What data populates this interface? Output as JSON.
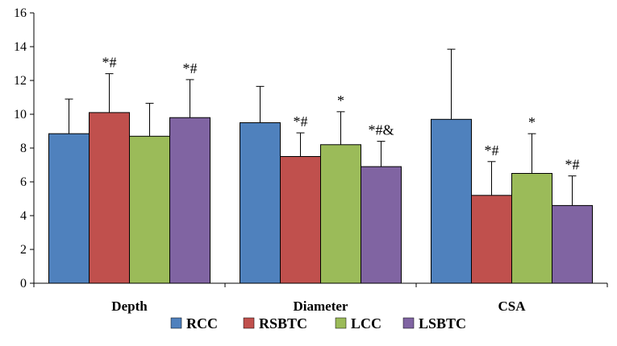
{
  "chart_data": {
    "type": "bar",
    "title": "",
    "xlabel": "",
    "ylabel": "",
    "ylim": [
      0,
      16
    ],
    "yticks": [
      0,
      2,
      4,
      6,
      8,
      10,
      12,
      14,
      16
    ],
    "grid": false,
    "legend_position": "bottom",
    "categories": [
      "Depth",
      "Diameter",
      "CSA"
    ],
    "series": [
      {
        "name": "RCC",
        "color": "#4F81BD",
        "values": [
          8.85,
          9.5,
          9.7
        ],
        "error": [
          2.05,
          2.15,
          4.15
        ],
        "annotations": [
          "",
          "",
          ""
        ]
      },
      {
        "name": "RSBTC",
        "color": "#C0504D",
        "values": [
          10.1,
          7.5,
          5.2
        ],
        "error": [
          2.3,
          1.4,
          2.0
        ],
        "annotations": [
          "*#",
          "*#",
          "*#"
        ]
      },
      {
        "name": "LCC",
        "color": "#9BBB59",
        "values": [
          8.7,
          8.2,
          6.5
        ],
        "error": [
          1.95,
          1.95,
          2.35
        ],
        "annotations": [
          "",
          "*",
          "*"
        ]
      },
      {
        "name": "LSBTC",
        "color": "#8064A2",
        "values": [
          9.8,
          6.9,
          4.6
        ],
        "error": [
          2.25,
          1.5,
          1.75
        ],
        "annotations": [
          "*#",
          "*#&",
          "*#"
        ]
      }
    ]
  }
}
